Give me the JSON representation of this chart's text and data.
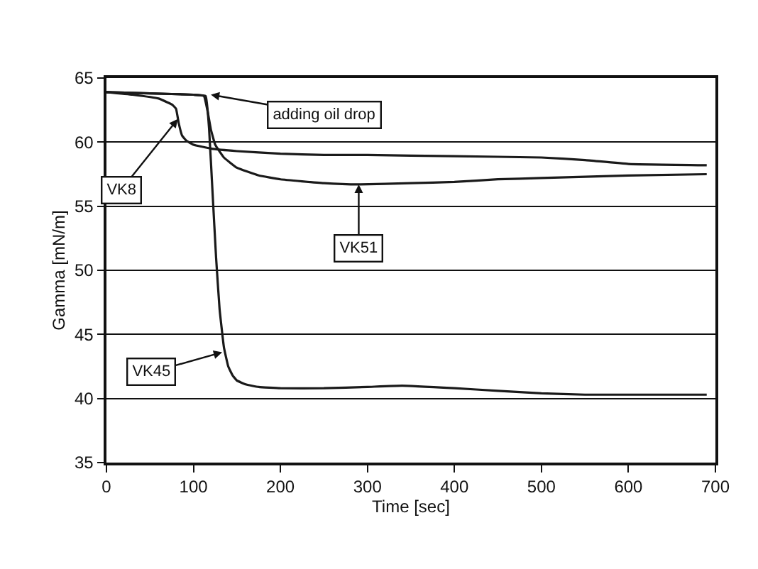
{
  "chart_data": {
    "type": "line",
    "xlabel": "Time [sec]",
    "ylabel": "Gamma [mN/m]",
    "xlim": [
      0,
      700
    ],
    "ylim": [
      35,
      65
    ],
    "xticks": [
      0,
      100,
      200,
      300,
      400,
      500,
      600,
      700
    ],
    "yticks": [
      35,
      40,
      45,
      50,
      55,
      60,
      65
    ],
    "grid": "y",
    "series": [
      {
        "color": "#1a1a1a",
        "x": [
          0,
          30,
          60,
          70,
          76,
          80,
          83,
          87,
          92,
          100,
          120,
          150,
          200,
          250,
          300,
          400,
          500,
          550,
          600,
          690
        ],
        "values": [
          63.9,
          63.7,
          63.4,
          63.1,
          62.9,
          62.6,
          61.5,
          60.5,
          60.1,
          59.8,
          59.5,
          59.3,
          59.1,
          59.0,
          59.0,
          58.9,
          58.8,
          58.6,
          58.3,
          58.2
        ]
      },
      {
        "color": "#1a1a1a",
        "x": [
          0,
          50,
          100,
          112,
          116,
          120,
          125,
          135,
          150,
          175,
          200,
          250,
          290,
          350,
          400,
          450,
          500,
          600,
          690
        ],
        "values": [
          63.9,
          63.8,
          63.7,
          63.6,
          62.5,
          61.0,
          59.8,
          58.8,
          58.0,
          57.4,
          57.1,
          56.8,
          56.7,
          56.8,
          56.9,
          57.1,
          57.2,
          57.4,
          57.5
        ]
      },
      {
        "color": "#1a1a1a",
        "x": [
          0,
          50,
          100,
          114,
          118,
          122,
          126,
          130,
          135,
          140,
          145,
          150,
          160,
          175,
          200,
          250,
          300,
          340,
          400,
          450,
          500,
          550,
          600,
          690
        ],
        "values": [
          63.9,
          63.8,
          63.7,
          63.6,
          61.0,
          56.0,
          51.0,
          47.0,
          44.0,
          42.5,
          41.8,
          41.4,
          41.1,
          40.9,
          40.8,
          40.8,
          40.9,
          41.0,
          40.8,
          40.6,
          40.4,
          40.3,
          40.3,
          40.3
        ]
      }
    ],
    "annotations": [
      {
        "text": "adding oil drop",
        "x": 120,
        "y": 63.7
      },
      {
        "text": "VK8",
        "x": 82,
        "y": 61.8
      },
      {
        "text": "VK51",
        "x": 290,
        "y": 56.7
      },
      {
        "text": "VK45",
        "x": 133,
        "y": 43.6
      }
    ]
  }
}
